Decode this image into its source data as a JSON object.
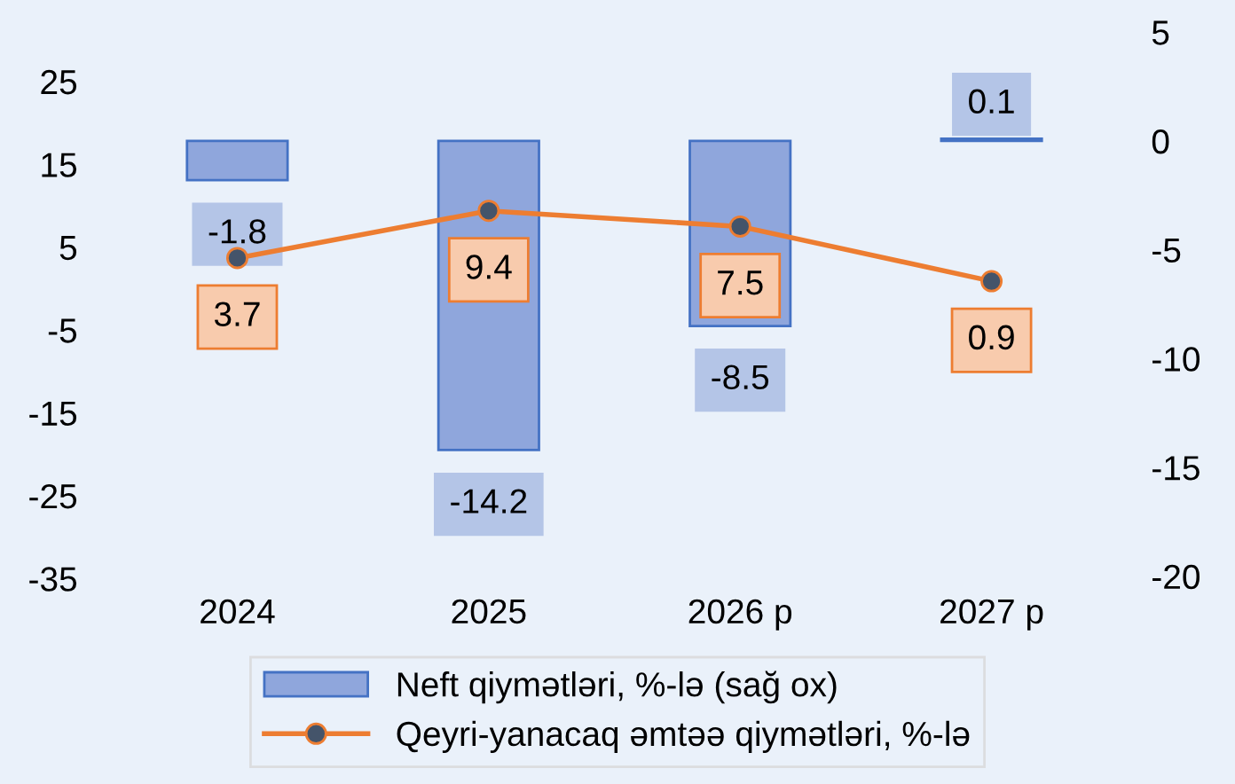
{
  "chart_data": {
    "type": "bar",
    "categories": [
      "2024",
      "2025",
      "2026 p",
      "2027 p"
    ],
    "series": [
      {
        "name": "Neft qiymətləri, %-lə (sağ ox)",
        "axis": "y2",
        "color": "#8fa6dc",
        "values": [
          -1.8,
          -14.2,
          -8.5,
          0.1
        ]
      },
      {
        "name": "Qeyri-yanacaq əmtəə qiymətləri, %-lə",
        "type": "line",
        "axis": "y",
        "color": "#ed7d31",
        "marker": "circle",
        "values": [
          3.7,
          9.4,
          7.5,
          0.9
        ]
      }
    ],
    "ylim": [
      -35,
      25
    ],
    "yticks": [
      -35,
      -25,
      -15,
      -5,
      5,
      15,
      25
    ],
    "y2lim": [
      -20,
      5
    ],
    "y2ticks": [
      -20,
      -15,
      -10,
      -5,
      0,
      5
    ],
    "data_labels": true,
    "legend": "bottom",
    "grid": false
  }
}
